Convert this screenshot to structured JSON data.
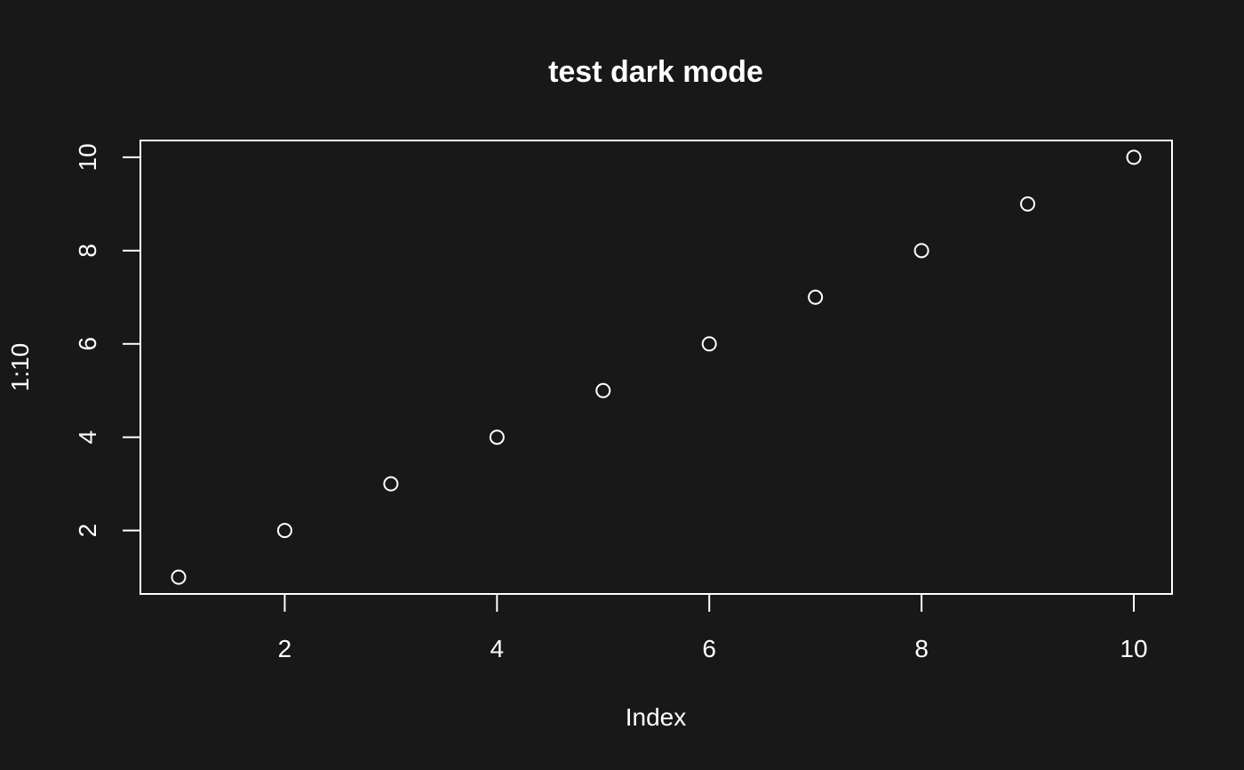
{
  "chart_data": {
    "type": "scatter",
    "title": "test dark mode",
    "xlabel": "Index",
    "ylabel": "1:10",
    "x": [
      1,
      2,
      3,
      4,
      5,
      6,
      7,
      8,
      9,
      10
    ],
    "y": [
      1,
      2,
      3,
      4,
      5,
      6,
      7,
      8,
      9,
      10
    ],
    "xlim": [
      0.64,
      10.36
    ],
    "ylim": [
      0.64,
      10.36
    ],
    "x_ticks": [
      2,
      4,
      6,
      8,
      10
    ],
    "y_ticks": [
      2,
      4,
      6,
      8,
      10
    ],
    "x_tick_labels": [
      "2",
      "4",
      "6",
      "8",
      "10"
    ],
    "y_tick_labels": [
      "2",
      "4",
      "6",
      "8",
      "10"
    ],
    "marker": "open-circle",
    "grid": false,
    "legend": false,
    "colors": {
      "background": "#181818",
      "foreground": "#ffffff"
    }
  }
}
